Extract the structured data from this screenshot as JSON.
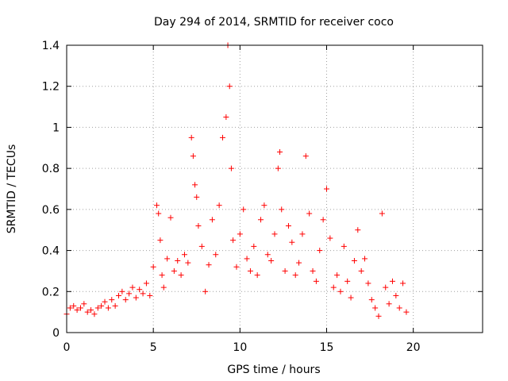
{
  "chart_data": {
    "type": "scatter",
    "title": "Day 294 of 2014, SRMTID for receiver coco",
    "xlabel": "GPS time / hours",
    "ylabel": "SRMTID / TECUs",
    "xlim": [
      0,
      24
    ],
    "ylim": [
      0,
      1.4
    ],
    "xticks": [
      0,
      5,
      10,
      15,
      20
    ],
    "xtick_labels": [
      "0",
      "5",
      "10",
      "15",
      "20"
    ],
    "yticks": [
      0,
      0.2,
      0.4,
      0.6,
      0.8,
      1.0,
      1.2,
      1.4
    ],
    "ytick_labels": [
      "0",
      "0.2",
      "0.4",
      "0.6",
      "0.8",
      "1",
      "1.2",
      "1.4"
    ],
    "grid": true,
    "marker": "+",
    "color": "#ff0000",
    "series": [
      {
        "name": "SRMTID",
        "x": [
          0.0,
          0.2,
          0.4,
          0.6,
          0.8,
          1.0,
          1.2,
          1.4,
          1.6,
          1.8,
          2.0,
          2.2,
          2.4,
          2.6,
          2.8,
          3.0,
          3.2,
          3.4,
          3.6,
          3.8,
          4.0,
          4.2,
          4.4,
          4.6,
          4.8,
          5.0,
          5.2,
          5.3,
          5.4,
          5.5,
          5.6,
          5.8,
          6.0,
          6.2,
          6.4,
          6.6,
          6.8,
          7.0,
          7.2,
          7.3,
          7.4,
          7.5,
          7.6,
          7.8,
          8.0,
          8.2,
          8.4,
          8.6,
          8.8,
          9.0,
          9.2,
          9.3,
          9.4,
          9.5,
          9.6,
          9.8,
          10.0,
          10.2,
          10.4,
          10.6,
          10.8,
          11.0,
          11.2,
          11.4,
          11.6,
          11.8,
          12.0,
          12.2,
          12.3,
          12.4,
          12.6,
          12.8,
          13.0,
          13.2,
          13.4,
          13.6,
          13.8,
          14.0,
          14.2,
          14.4,
          14.6,
          14.8,
          15.0,
          15.2,
          15.4,
          15.6,
          15.8,
          16.0,
          16.2,
          16.4,
          16.6,
          16.8,
          17.0,
          17.2,
          17.4,
          17.6,
          17.8,
          18.0,
          18.2,
          18.4,
          18.6,
          18.8,
          19.0,
          19.2,
          19.4,
          19.6
        ],
        "y": [
          0.09,
          0.12,
          0.13,
          0.11,
          0.12,
          0.14,
          0.1,
          0.11,
          0.09,
          0.12,
          0.13,
          0.15,
          0.12,
          0.16,
          0.13,
          0.18,
          0.2,
          0.16,
          0.19,
          0.22,
          0.17,
          0.21,
          0.19,
          0.24,
          0.18,
          0.32,
          0.62,
          0.58,
          0.45,
          0.28,
          0.22,
          0.36,
          0.56,
          0.3,
          0.35,
          0.28,
          0.38,
          0.34,
          0.95,
          0.86,
          0.72,
          0.66,
          0.52,
          0.42,
          0.2,
          0.33,
          0.55,
          0.38,
          0.62,
          0.95,
          1.05,
          1.4,
          1.2,
          0.8,
          0.45,
          0.32,
          0.48,
          0.6,
          0.36,
          0.3,
          0.42,
          0.28,
          0.55,
          0.62,
          0.38,
          0.35,
          0.48,
          0.8,
          0.88,
          0.6,
          0.3,
          0.52,
          0.44,
          0.28,
          0.34,
          0.48,
          0.86,
          0.58,
          0.3,
          0.25,
          0.4,
          0.55,
          0.7,
          0.46,
          0.22,
          0.28,
          0.2,
          0.42,
          0.25,
          0.17,
          0.35,
          0.5,
          0.3,
          0.36,
          0.24,
          0.16,
          0.12,
          0.08,
          0.58,
          0.22,
          0.14,
          0.25,
          0.18,
          0.12,
          0.24,
          0.1
        ]
      }
    ]
  }
}
